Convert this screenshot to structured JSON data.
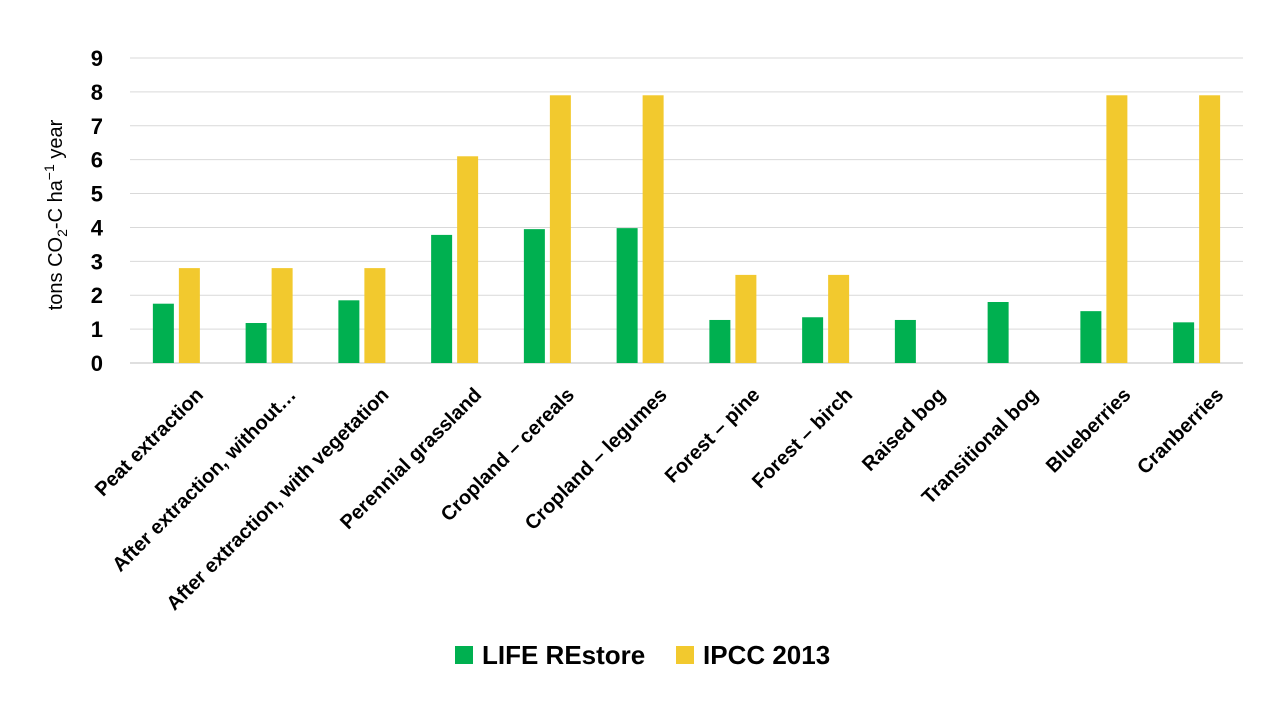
{
  "chart_data": {
    "type": "bar",
    "title": "",
    "ylabel": {
      "main": "tons CO",
      "sub": "2",
      "mid": "-C ha",
      "sup": "−1",
      "tail": " year"
    },
    "ylim": [
      0,
      9
    ],
    "yticks": [
      0,
      1,
      2,
      3,
      4,
      5,
      6,
      7,
      8,
      9
    ],
    "grid": true,
    "legend_position": "bottom",
    "categories": [
      "Peat extraction",
      "After extraction, without…",
      "After extraction, with vegetation",
      "Perennial grassland",
      "Cropland – cereals",
      "Cropland – legumes",
      "Forest – pine",
      "Forest – birch",
      "Raised bog",
      "Transitional bog",
      "Blueberries",
      "Cranberries"
    ],
    "series": [
      {
        "name": "LIFE REstore",
        "color": "#00b050",
        "values": [
          1.75,
          1.18,
          1.85,
          3.78,
          3.95,
          3.98,
          1.27,
          1.35,
          1.27,
          1.8,
          1.53,
          1.2
        ]
      },
      {
        "name": "IPCC 2013",
        "color": "#f2c92e",
        "values": [
          2.8,
          2.8,
          2.8,
          6.1,
          7.9,
          7.9,
          2.6,
          2.6,
          null,
          null,
          7.9,
          7.9
        ]
      }
    ]
  }
}
